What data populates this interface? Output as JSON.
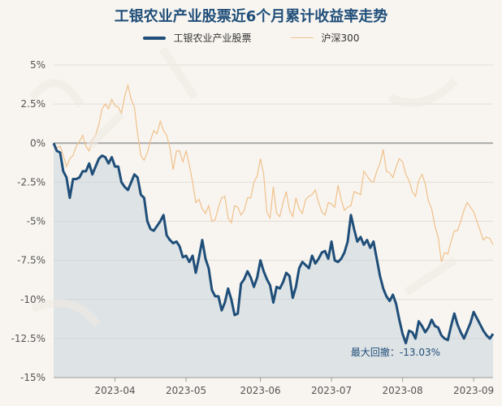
{
  "chart_data": {
    "type": "line",
    "title": "工银农业产业股票近6个月累计收益率走势",
    "y_tick_labels": [
      "5%",
      "2.5%",
      "0%",
      "-2.5%",
      "-5%",
      "-7.5%",
      "-10%",
      "-12.5%",
      "-15%"
    ],
    "y_ticks": [
      5,
      2.5,
      0,
      -2.5,
      -5,
      -7.5,
      -10,
      -12.5,
      -15
    ],
    "ylim": [
      -15,
      5
    ],
    "x_tick_labels": [
      "2023-04",
      "2023-05",
      "2023-06",
      "2023-07",
      "2023-08",
      "2023-09"
    ],
    "x_tick_positions": [
      19,
      41,
      64,
      86,
      108,
      130
    ],
    "x_range": [
      0,
      136
    ],
    "grid": "horizontal",
    "legend_position": "top",
    "series": [
      {
        "name": "工银农业产业股票",
        "color": "#1f4e79",
        "x": [
          0,
          1,
          2,
          3,
          4,
          5,
          6,
          7,
          8,
          9,
          10,
          11,
          12,
          13,
          14,
          15,
          16,
          17,
          18,
          19,
          20,
          21,
          22,
          23,
          24,
          25,
          26,
          27,
          28,
          29,
          30,
          31,
          32,
          33,
          34,
          35,
          36,
          37,
          38,
          39,
          40,
          41,
          42,
          43,
          44,
          45,
          46,
          47,
          48,
          49,
          50,
          51,
          52,
          53,
          54,
          55,
          56,
          57,
          58,
          59,
          60,
          61,
          62,
          63,
          64,
          65,
          66,
          67,
          68,
          69,
          70,
          71,
          72,
          73,
          74,
          75,
          76,
          77,
          78,
          79,
          80,
          81,
          82,
          83,
          84,
          85,
          86,
          87,
          88,
          89,
          90,
          91,
          92,
          93,
          94,
          95,
          96,
          97,
          98,
          99,
          100,
          101,
          102,
          103,
          104,
          105,
          106,
          107,
          108,
          109,
          110,
          111,
          112,
          113,
          114,
          115,
          116,
          117,
          118,
          119,
          120,
          121,
          122,
          123,
          124,
          125,
          126,
          127,
          128,
          129,
          130,
          131,
          132,
          133,
          134,
          135,
          136
        ],
        "values": [
          0.0,
          -0.5,
          -0.6,
          -1.8,
          -2.2,
          -3.5,
          -2.3,
          -2.3,
          -2.2,
          -1.8,
          -1.8,
          -1.3,
          -2.0,
          -1.5,
          -1.0,
          -0.8,
          -0.9,
          -1.3,
          -0.9,
          -1.5,
          -1.5,
          -2.5,
          -2.8,
          -3.0,
          -2.5,
          -2.0,
          -2.2,
          -3.3,
          -3.5,
          -5.0,
          -5.5,
          -5.6,
          -5.3,
          -5.0,
          -4.6,
          -5.9,
          -6.2,
          -6.4,
          -6.3,
          -6.6,
          -7.3,
          -7.2,
          -7.6,
          -7.2,
          -8.3,
          -7.3,
          -6.2,
          -7.4,
          -8.0,
          -9.4,
          -9.8,
          -9.8,
          -10.7,
          -10.2,
          -9.3,
          -10.0,
          -11.0,
          -10.9,
          -9.0,
          -8.7,
          -8.2,
          -8.6,
          -9.2,
          -8.6,
          -7.5,
          -8.2,
          -8.7,
          -9.1,
          -10.2,
          -9.2,
          -9.3,
          -8.9,
          -8.3,
          -8.5,
          -9.9,
          -9.2,
          -8.0,
          -7.6,
          -7.8,
          -8.0,
          -7.2,
          -7.7,
          -7.4,
          -7.0,
          -6.9,
          -7.4,
          -6.3,
          -7.5,
          -7.6,
          -7.4,
          -7.0,
          -6.3,
          -4.6,
          -5.5,
          -6.3,
          -6.0,
          -6.5,
          -6.2,
          -6.7,
          -6.3,
          -7.4,
          -8.5,
          -9.3,
          -9.8,
          -10.1,
          -9.7,
          -10.3,
          -11.3,
          -12.2,
          -12.8,
          -12.0,
          -12.1,
          -12.5,
          -11.4,
          -11.7,
          -12.1,
          -11.8,
          -11.3,
          -11.7,
          -11.8,
          -12.3,
          -12.5,
          -12.6,
          -11.7,
          -10.9,
          -11.6,
          -12.1,
          -12.5,
          -12.0,
          -11.5,
          -10.8,
          -11.2,
          -11.6,
          -12.0,
          -12.3,
          -12.5,
          -12.2
        ]
      },
      {
        "name": "沪深300",
        "color": "#f0c08a",
        "x": [
          0,
          1,
          2,
          3,
          4,
          5,
          6,
          7,
          8,
          9,
          10,
          11,
          12,
          13,
          14,
          15,
          16,
          17,
          18,
          19,
          20,
          21,
          22,
          23,
          24,
          25,
          26,
          27,
          28,
          29,
          30,
          31,
          32,
          33,
          34,
          35,
          36,
          37,
          38,
          39,
          40,
          41,
          42,
          43,
          44,
          45,
          46,
          47,
          48,
          49,
          50,
          51,
          52,
          53,
          54,
          55,
          56,
          57,
          58,
          59,
          60,
          61,
          62,
          63,
          64,
          65,
          66,
          67,
          68,
          69,
          70,
          71,
          72,
          73,
          74,
          75,
          76,
          77,
          78,
          79,
          80,
          81,
          82,
          83,
          84,
          85,
          86,
          87,
          88,
          89,
          90,
          91,
          92,
          93,
          94,
          95,
          96,
          97,
          98,
          99,
          100,
          101,
          102,
          103,
          104,
          105,
          106,
          107,
          108,
          109,
          110,
          111,
          112,
          113,
          114,
          115,
          116,
          117,
          118,
          119,
          120,
          121,
          122,
          123,
          124,
          125,
          126,
          127,
          128,
          129,
          130,
          131,
          132,
          133,
          134,
          135,
          136
        ],
        "values": [
          0.0,
          -0.3,
          -0.2,
          -0.8,
          -1.5,
          -1.0,
          -0.8,
          -0.2,
          0.1,
          0.5,
          -0.2,
          -0.5,
          0.2,
          0.5,
          1.2,
          2.2,
          2.5,
          2.2,
          2.8,
          2.4,
          2.3,
          1.9,
          3.0,
          3.7,
          2.8,
          2.3,
          0.6,
          -0.8,
          -1.1,
          -0.6,
          0.2,
          0.8,
          0.6,
          1.4,
          0.8,
          0.5,
          -0.3,
          -1.7,
          -0.5,
          -0.5,
          -1.2,
          -0.5,
          -1.4,
          -2.5,
          -3.8,
          -3.6,
          -4.2,
          -4.5,
          -4.0,
          -5.0,
          -4.9,
          -4.1,
          -3.5,
          -3.4,
          -4.8,
          -5.1,
          -4.0,
          -4.1,
          -4.6,
          -4.3,
          -3.5,
          -3.5,
          -2.5,
          -2.1,
          -1.0,
          -2.0,
          -4.4,
          -4.8,
          -2.8,
          -4.5,
          -4.7,
          -3.8,
          -3.1,
          -4.3,
          -4.7,
          -3.5,
          -4.2,
          -4.5,
          -3.6,
          -3.4,
          -3.3,
          -3.0,
          -3.8,
          -4.4,
          -4.6,
          -3.8,
          -3.9,
          -4.1,
          -2.7,
          -3.6,
          -4.3,
          -4.1,
          -4.0,
          -3.1,
          -3.2,
          -3.3,
          -1.8,
          -2.1,
          -2.4,
          -2.5,
          -1.8,
          -1.3,
          -0.4,
          -1.8,
          -1.9,
          -2.2,
          -1.5,
          -1.0,
          -1.2,
          -2.0,
          -2.4,
          -3.1,
          -3.4,
          -2.4,
          -2.0,
          -2.6,
          -3.7,
          -4.2,
          -5.3,
          -6.0,
          -7.6,
          -7.0,
          -7.1,
          -6.3,
          -5.6,
          -5.6,
          -5.0,
          -4.3,
          -3.8,
          -4.1,
          -4.4,
          -5.0,
          -5.6,
          -6.2,
          -6.0,
          -6.1,
          -6.5
        ]
      }
    ],
    "annotation": "最大回撤：-13.03%"
  }
}
